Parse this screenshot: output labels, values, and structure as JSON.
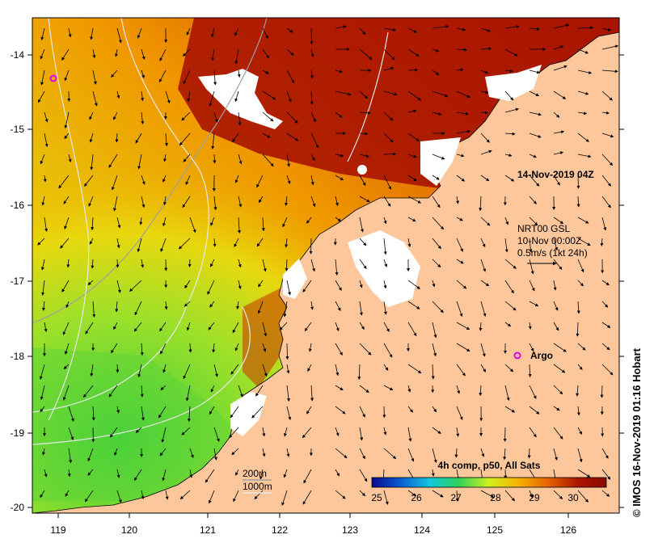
{
  "map": {
    "date_label": "14-Nov-2019 04Z",
    "current_source": {
      "line1": "NRT00 GSL",
      "line2": "10-Nov 00:00Z",
      "line3": "0.5m/s (1kt 24h)"
    },
    "marker_label": "Argo",
    "marker_color": "#e000e0",
    "legend_title": "4h comp, p50, All Sats",
    "colorbar_ticks": [
      "25",
      "26",
      "27",
      "28",
      "29",
      "30"
    ],
    "colorbar_colors": [
      "#0a0a8c",
      "#0a5ad2",
      "#14c8dc",
      "#2dd25a",
      "#d2f01e",
      "#f5b400",
      "#e66400",
      "#aa1400",
      "#8c0a00"
    ],
    "contour_labels": [
      "200m",
      "1000m"
    ],
    "land_color": "#fdc79b",
    "copyright": "© IMOS 16-Nov-2019 01:16 Hobart",
    "lon_ticks": [
      "119",
      "120",
      "121",
      "122",
      "123",
      "124",
      "125",
      "126"
    ],
    "lat_ticks": [
      "-14",
      "-15",
      "-16",
      "-17",
      "-18",
      "-19",
      "-20"
    ]
  }
}
